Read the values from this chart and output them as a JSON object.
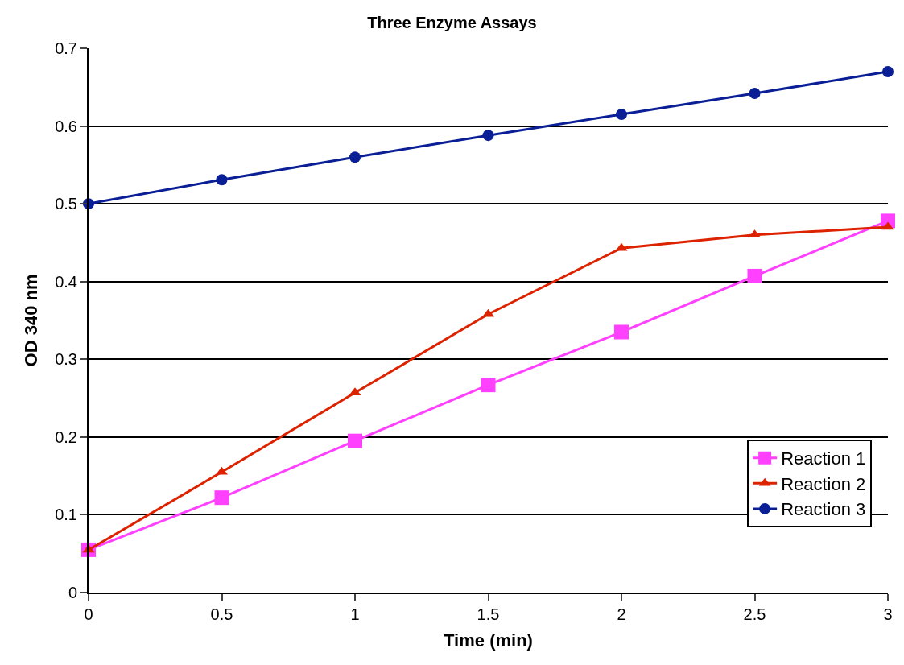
{
  "chart_data": {
    "type": "line",
    "title": "Three Enzyme Assays",
    "xlabel": "Time (min)",
    "ylabel": "OD 340 nm",
    "x": [
      0,
      0.5,
      1,
      1.5,
      2,
      2.5,
      3
    ],
    "series": [
      {
        "name": "Reaction 1",
        "color": "#ff40ff",
        "marker": "square",
        "values": [
          0.055,
          0.122,
          0.195,
          0.267,
          0.335,
          0.407,
          0.478
        ]
      },
      {
        "name": "Reaction 2",
        "color": "#dd2200",
        "marker": "triangle",
        "values": [
          0.055,
          0.155,
          0.257,
          0.358,
          0.443,
          0.46,
          0.47
        ]
      },
      {
        "name": "Reaction 3",
        "color": "#0a1e96",
        "marker": "circle",
        "values": [
          0.5,
          0.531,
          0.56,
          0.588,
          0.615,
          0.642,
          0.67
        ]
      }
    ],
    "xlim": [
      0,
      3
    ],
    "xticks": [
      0,
      0.5,
      1,
      1.5,
      2,
      2.5,
      3
    ],
    "ylim": [
      0,
      0.7
    ],
    "yticks": [
      0,
      0.1,
      0.2,
      0.3,
      0.4,
      0.5,
      0.6,
      0.7
    ],
    "grid": "y",
    "legend": "bottom right",
    "line_style": "solid"
  }
}
